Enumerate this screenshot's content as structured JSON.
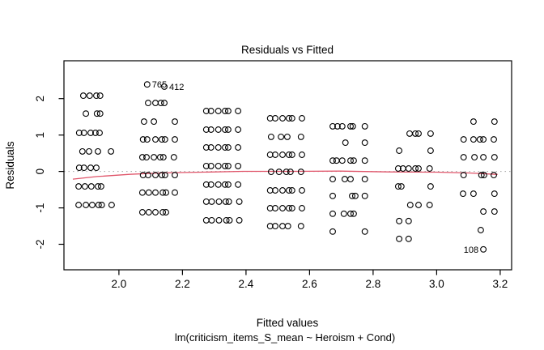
{
  "chart_data": {
    "type": "scatter",
    "title": "Residuals vs Fitted",
    "xlabel": "Fitted values",
    "subtitle": "lm(criticism_items_S_mean ~ Heroism + Cond)",
    "ylabel": "Residuals",
    "xlim": [
      1.827,
      3.236
    ],
    "ylim": [
      -2.7,
      3.04
    ],
    "grid": false,
    "legend": "none",
    "x_ticks": [
      {
        "value": 2.0,
        "label": "2.0"
      },
      {
        "value": 2.2,
        "label": "2.2"
      },
      {
        "value": 2.4,
        "label": "2.4"
      },
      {
        "value": 2.6,
        "label": "2.6"
      },
      {
        "value": 2.8,
        "label": "2.8"
      },
      {
        "value": 3.0,
        "label": "3.0"
      },
      {
        "value": 3.2,
        "label": "3.2"
      }
    ],
    "y_ticks": [
      {
        "value": -2,
        "label": "-2"
      },
      {
        "value": -1,
        "label": "-1"
      },
      {
        "value": 0,
        "label": "0"
      },
      {
        "value": 1,
        "label": "1"
      },
      {
        "value": 2,
        "label": "2"
      }
    ],
    "zero_line": {
      "y": 0,
      "style": "dotted",
      "color": "#a3a3a3"
    },
    "point_style": {
      "shape": "open-circle",
      "color": "#000000",
      "radius": 3.4
    },
    "smooth_line": {
      "name": "loess-smooth",
      "color": "#e0556a",
      "points": [
        [
          1.855,
          -0.21
        ],
        [
          1.931,
          -0.14
        ],
        [
          2.033,
          -0.08
        ],
        [
          2.135,
          -0.04
        ],
        [
          2.262,
          -0.018
        ],
        [
          2.39,
          0.004
        ],
        [
          2.543,
          0.004
        ],
        [
          2.696,
          0.009
        ],
        [
          2.849,
          -0.013
        ],
        [
          3.001,
          -0.018
        ],
        [
          3.103,
          -0.042
        ],
        [
          3.192,
          -0.082
        ]
      ]
    },
    "labeled_points": [
      {
        "x": 2.089,
        "y": 2.39,
        "label": "765",
        "side": "right"
      },
      {
        "x": 2.143,
        "y": 2.33,
        "label": "412",
        "side": "right"
      },
      {
        "x": 3.147,
        "y": -2.14,
        "label": "108",
        "side": "left"
      }
    ],
    "points": [
      [
        1.888,
        2.08
      ],
      [
        1.908,
        2.08
      ],
      [
        1.929,
        2.08
      ],
      [
        1.941,
        2.08
      ],
      [
        1.896,
        1.59
      ],
      [
        1.931,
        1.59
      ],
      [
        1.941,
        1.59
      ],
      [
        1.875,
        1.06
      ],
      [
        1.89,
        1.06
      ],
      [
        1.911,
        1.06
      ],
      [
        1.926,
        1.06
      ],
      [
        1.939,
        1.06
      ],
      [
        1.885,
        0.55
      ],
      [
        1.906,
        0.55
      ],
      [
        1.934,
        0.55
      ],
      [
        1.975,
        0.55
      ],
      [
        1.875,
        0.1
      ],
      [
        1.89,
        0.1
      ],
      [
        1.911,
        0.1
      ],
      [
        1.929,
        0.1
      ],
      [
        1.873,
        -0.41
      ],
      [
        1.893,
        -0.41
      ],
      [
        1.913,
        -0.41
      ],
      [
        1.934,
        -0.41
      ],
      [
        1.944,
        -0.41
      ],
      [
        1.873,
        -0.92
      ],
      [
        1.896,
        -0.92
      ],
      [
        1.916,
        -0.92
      ],
      [
        1.936,
        -0.92
      ],
      [
        1.946,
        -0.92
      ],
      [
        1.977,
        -0.92
      ],
      [
        2.092,
        1.88
      ],
      [
        2.115,
        1.88
      ],
      [
        2.132,
        1.88
      ],
      [
        2.143,
        1.88
      ],
      [
        2.079,
        1.37
      ],
      [
        2.11,
        1.37
      ],
      [
        2.176,
        1.37
      ],
      [
        2.076,
        0.88
      ],
      [
        2.089,
        0.88
      ],
      [
        2.115,
        0.88
      ],
      [
        2.135,
        0.88
      ],
      [
        2.145,
        0.88
      ],
      [
        2.176,
        0.88
      ],
      [
        2.074,
        0.39
      ],
      [
        2.087,
        0.39
      ],
      [
        2.11,
        0.39
      ],
      [
        2.13,
        0.39
      ],
      [
        2.14,
        0.39
      ],
      [
        2.173,
        0.39
      ],
      [
        2.076,
        -0.1
      ],
      [
        2.092,
        -0.1
      ],
      [
        2.115,
        -0.1
      ],
      [
        2.135,
        -0.1
      ],
      [
        2.145,
        -0.1
      ],
      [
        2.176,
        -0.1
      ],
      [
        2.074,
        -0.58
      ],
      [
        2.094,
        -0.58
      ],
      [
        2.115,
        -0.58
      ],
      [
        2.138,
        -0.58
      ],
      [
        2.148,
        -0.58
      ],
      [
        2.176,
        -0.58
      ],
      [
        2.074,
        -1.12
      ],
      [
        2.094,
        -1.12
      ],
      [
        2.115,
        -1.12
      ],
      [
        2.138,
        -1.12
      ],
      [
        2.148,
        -1.12
      ],
      [
        2.275,
        1.66
      ],
      [
        2.29,
        1.66
      ],
      [
        2.313,
        1.66
      ],
      [
        2.334,
        1.66
      ],
      [
        2.344,
        1.66
      ],
      [
        2.375,
        1.66
      ],
      [
        2.275,
        1.15
      ],
      [
        2.29,
        1.15
      ],
      [
        2.313,
        1.15
      ],
      [
        2.334,
        1.15
      ],
      [
        2.344,
        1.15
      ],
      [
        2.375,
        1.15
      ],
      [
        2.275,
        0.66
      ],
      [
        2.29,
        0.66
      ],
      [
        2.313,
        0.66
      ],
      [
        2.334,
        0.66
      ],
      [
        2.344,
        0.66
      ],
      [
        2.375,
        0.66
      ],
      [
        2.275,
        0.15
      ],
      [
        2.29,
        0.15
      ],
      [
        2.313,
        0.15
      ],
      [
        2.334,
        0.15
      ],
      [
        2.344,
        0.15
      ],
      [
        2.375,
        0.15
      ],
      [
        2.275,
        -0.36
      ],
      [
        2.29,
        -0.36
      ],
      [
        2.313,
        -0.36
      ],
      [
        2.334,
        -0.36
      ],
      [
        2.344,
        -0.36
      ],
      [
        2.375,
        -0.36
      ],
      [
        2.275,
        -0.83
      ],
      [
        2.292,
        -0.83
      ],
      [
        2.315,
        -0.83
      ],
      [
        2.336,
        -0.83
      ],
      [
        2.346,
        -0.83
      ],
      [
        2.379,
        -0.83
      ],
      [
        2.275,
        -1.34
      ],
      [
        2.292,
        -1.34
      ],
      [
        2.315,
        -1.34
      ],
      [
        2.338,
        -1.34
      ],
      [
        2.348,
        -1.34
      ],
      [
        2.379,
        -1.34
      ],
      [
        2.476,
        1.46
      ],
      [
        2.492,
        1.46
      ],
      [
        2.515,
        1.46
      ],
      [
        2.535,
        1.46
      ],
      [
        2.545,
        1.46
      ],
      [
        2.576,
        1.46
      ],
      [
        2.479,
        0.95
      ],
      [
        2.51,
        0.95
      ],
      [
        2.53,
        0.95
      ],
      [
        2.573,
        0.95
      ],
      [
        2.476,
        0.46
      ],
      [
        2.492,
        0.46
      ],
      [
        2.515,
        0.46
      ],
      [
        2.535,
        0.46
      ],
      [
        2.545,
        0.46
      ],
      [
        2.576,
        0.46
      ],
      [
        2.479,
        -0.01
      ],
      [
        2.504,
        -0.01
      ],
      [
        2.527,
        -0.01
      ],
      [
        2.54,
        -0.01
      ],
      [
        2.573,
        -0.01
      ],
      [
        2.476,
        -0.52
      ],
      [
        2.492,
        -0.52
      ],
      [
        2.515,
        -0.52
      ],
      [
        2.535,
        -0.52
      ],
      [
        2.545,
        -0.52
      ],
      [
        2.576,
        -0.52
      ],
      [
        2.476,
        -1.01
      ],
      [
        2.492,
        -1.01
      ],
      [
        2.515,
        -1.01
      ],
      [
        2.535,
        -1.01
      ],
      [
        2.545,
        -1.01
      ],
      [
        2.576,
        -1.01
      ],
      [
        2.476,
        -1.5
      ],
      [
        2.492,
        -1.5
      ],
      [
        2.515,
        -1.5
      ],
      [
        2.532,
        -1.5
      ],
      [
        2.573,
        -1.5
      ],
      [
        2.673,
        1.24
      ],
      [
        2.688,
        1.24
      ],
      [
        2.703,
        1.24
      ],
      [
        2.729,
        1.24
      ],
      [
        2.736,
        1.24
      ],
      [
        2.774,
        1.24
      ],
      [
        2.713,
        0.79
      ],
      [
        2.774,
        0.79
      ],
      [
        2.673,
        0.3
      ],
      [
        2.685,
        0.3
      ],
      [
        2.703,
        0.3
      ],
      [
        2.729,
        0.3
      ],
      [
        2.739,
        0.3
      ],
      [
        2.774,
        0.3
      ],
      [
        2.673,
        -0.21
      ],
      [
        2.711,
        -0.21
      ],
      [
        2.729,
        -0.21
      ],
      [
        2.774,
        -0.21
      ],
      [
        2.673,
        -0.67
      ],
      [
        2.734,
        -0.67
      ],
      [
        2.744,
        -0.67
      ],
      [
        2.774,
        -0.67
      ],
      [
        2.673,
        -1.16
      ],
      [
        2.708,
        -1.16
      ],
      [
        2.729,
        -1.16
      ],
      [
        2.739,
        -1.16
      ],
      [
        2.673,
        -1.65
      ],
      [
        2.774,
        -1.65
      ],
      [
        2.915,
        1.04
      ],
      [
        2.933,
        1.04
      ],
      [
        2.943,
        1.04
      ],
      [
        2.981,
        1.04
      ],
      [
        2.882,
        0.57
      ],
      [
        2.981,
        0.57
      ],
      [
        2.879,
        0.08
      ],
      [
        2.894,
        0.08
      ],
      [
        2.912,
        0.08
      ],
      [
        2.933,
        0.08
      ],
      [
        2.943,
        0.08
      ],
      [
        2.978,
        0.08
      ],
      [
        2.879,
        -0.41
      ],
      [
        2.889,
        -0.41
      ],
      [
        2.981,
        -0.41
      ],
      [
        2.917,
        -0.92
      ],
      [
        2.943,
        -0.92
      ],
      [
        2.978,
        -0.92
      ],
      [
        2.882,
        -1.36
      ],
      [
        2.912,
        -1.36
      ],
      [
        2.882,
        -1.85
      ],
      [
        2.912,
        -1.85
      ],
      [
        3.116,
        1.37
      ],
      [
        3.182,
        1.37
      ],
      [
        3.085,
        0.88
      ],
      [
        3.116,
        0.88
      ],
      [
        3.136,
        0.88
      ],
      [
        3.147,
        0.88
      ],
      [
        3.18,
        0.88
      ],
      [
        3.085,
        0.39
      ],
      [
        3.119,
        0.39
      ],
      [
        3.147,
        0.39
      ],
      [
        3.182,
        0.39
      ],
      [
        3.085,
        -0.1
      ],
      [
        3.141,
        -0.1
      ],
      [
        3.149,
        -0.1
      ],
      [
        3.18,
        -0.1
      ],
      [
        3.083,
        -0.61
      ],
      [
        3.116,
        -0.61
      ],
      [
        3.182,
        -0.61
      ],
      [
        3.147,
        -1.1
      ],
      [
        3.182,
        -1.1
      ],
      [
        3.139,
        -1.61
      ]
    ]
  }
}
